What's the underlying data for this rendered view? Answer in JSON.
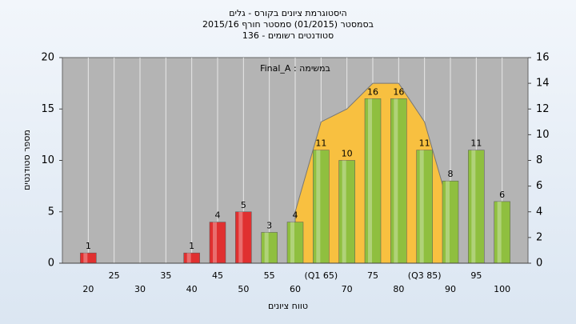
{
  "chart_data": {
    "type": "bar",
    "title": "היסטוגרמת ציונים בקורס - גלים",
    "subtitle": "בסמסטר  (01/2015)  סמסטר חורף 2015/16",
    "subtitle2": "סטודנטים רשומים - 136",
    "annotation": "Final_A : במשימה",
    "y_label": "מספר סטודנטים",
    "x_label": "טווח ציונים",
    "categories": [
      "20",
      "25",
      "30",
      "35",
      "40",
      "45",
      "50",
      "55",
      "60",
      "(Q1 65)",
      "70",
      "75",
      "80",
      "(Q3 85)",
      "90",
      "95",
      "100"
    ],
    "values": [
      1,
      null,
      null,
      null,
      1,
      4,
      5,
      3,
      4,
      11,
      10,
      16,
      16,
      11,
      8,
      11,
      6
    ],
    "colors": [
      "#e03030",
      "#e03030",
      "#e03030",
      "#e03030",
      "#e03030",
      "#e03030",
      "#e03030",
      "#8fbf3f",
      "#8fbf3f",
      "#8fbf3f",
      "#8fbf3f",
      "#8fbf3f",
      "#8fbf3f",
      "#8fbf3f",
      "#8fbf3f",
      "#8fbf3f",
      "#8fbf3f"
    ],
    "area": {
      "x": [
        60,
        65,
        70,
        75,
        80,
        85,
        90
      ],
      "values": [
        4,
        11,
        12,
        14,
        14,
        11,
        4
      ],
      "color": "#f8c040",
      "axis": "y2"
    },
    "ylim": [
      0,
      20
    ],
    "yticks": [
      0,
      5,
      10,
      15,
      20
    ],
    "y2lim": [
      0,
      16
    ],
    "y2ticks": [
      0,
      2,
      4,
      6,
      8,
      10,
      12,
      14,
      16
    ],
    "grid": true
  }
}
